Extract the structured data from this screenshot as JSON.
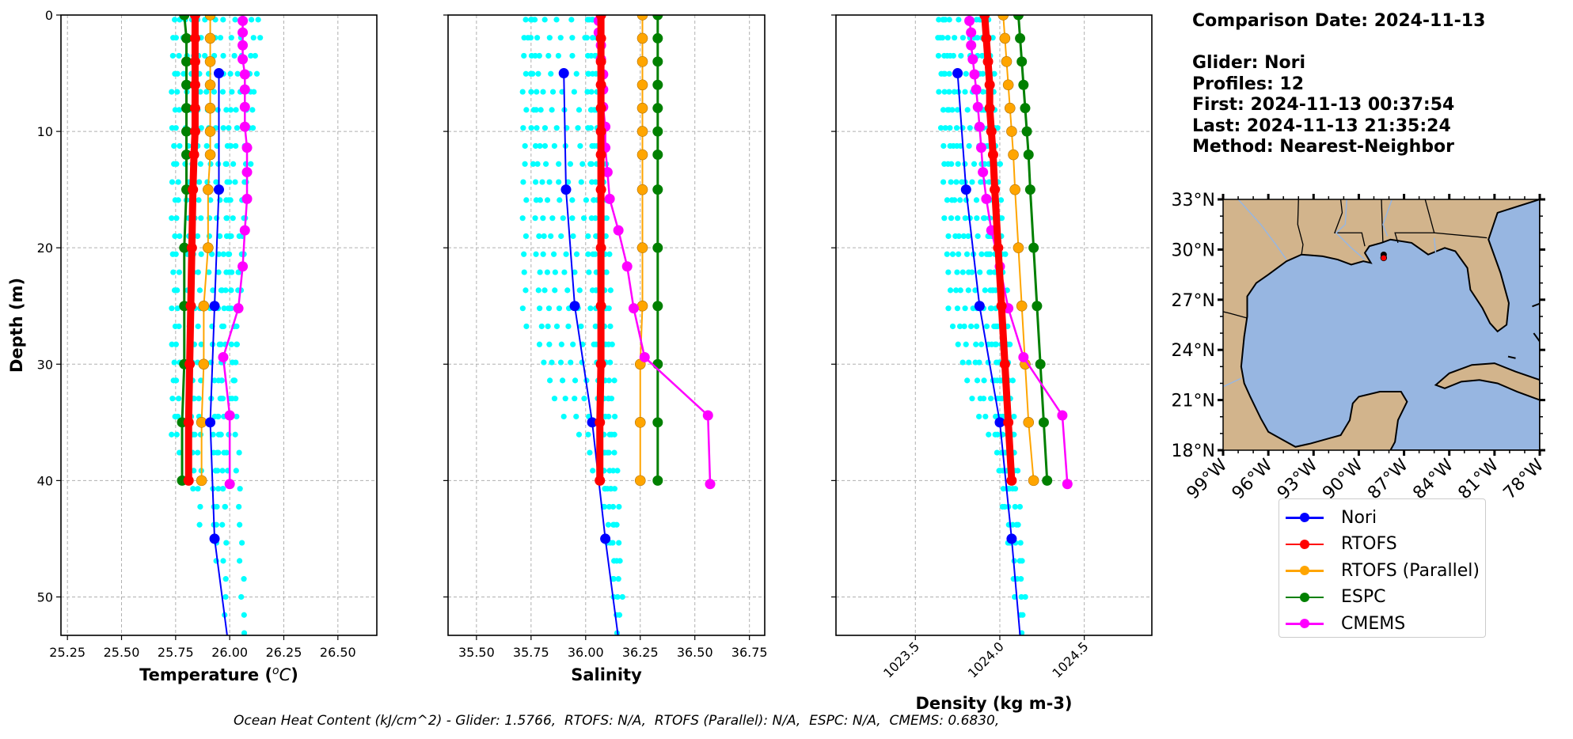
{
  "info": {
    "comparison_date": "Comparison Date: 2024-11-13",
    "glider": "Glider: Nori",
    "profiles": "Profiles: 12",
    "first": "First: 2024-11-13 00:37:54",
    "last": "Last: 2024-11-13 21:35:24",
    "method": "Method: Nearest-Neighbor"
  },
  "caption": "Ocean Heat Content (kJ/cm^2) - Glider: 1.5766,  RTOFS: N/A,  RTOFS (Parallel): N/A,  ESPC: N/A,  CMEMS: 0.6830,",
  "legend": [
    {
      "label": "Nori",
      "color": "#0000ff"
    },
    {
      "label": "RTOFS",
      "color": "#ff0000"
    },
    {
      "label": "RTOFS (Parallel)",
      "color": "#ffa500"
    },
    {
      "label": "ESPC",
      "color": "#008000"
    },
    {
      "label": "CMEMS",
      "color": "#ff00ff"
    }
  ],
  "colors": {
    "glider_profiles": "#00ffff",
    "grid": "#b0b0b0",
    "land": "#d2b48c",
    "ocean": "#97b6e1",
    "river": "#97b6e1"
  },
  "chart_data": [
    {
      "type": "line",
      "title": "",
      "xlabel": "Temperature (°C)",
      "ylabel": "Depth (m)",
      "xlim": [
        25.22,
        26.68
      ],
      "ylim": [
        53.3,
        0
      ],
      "xticks": [
        "25.25",
        "25.50",
        "25.75",
        "26.00",
        "26.25",
        "26.50"
      ],
      "yticks": [
        "0",
        "10",
        "20",
        "30",
        "40",
        "50"
      ],
      "grid": true,
      "profiles_scatter": {
        "name": "Glider profiles",
        "x_centers": [
          25.74,
          25.76,
          25.79,
          25.83,
          25.86,
          25.89,
          25.93,
          25.96,
          26.02,
          26.06,
          26.11,
          26.14
        ],
        "depth_max": [
          37,
          39,
          38,
          42,
          44,
          47,
          52,
          54,
          45,
          40,
          34,
          43
        ],
        "drift_per_m": [
          0.0,
          0.0,
          0.001,
          0.0,
          0.0,
          0.001,
          0.001,
          0.002,
          -0.002,
          -0.003,
          -0.003,
          -0.004
        ]
      },
      "series": [
        {
          "name": "Nori",
          "depth": [
            5,
            15,
            25,
            35,
            45,
            55
          ],
          "values": [
            25.95,
            25.95,
            25.93,
            25.91,
            25.93,
            26.0
          ]
        },
        {
          "name": "RTOFS",
          "depth": [
            0,
            2,
            4,
            6,
            8,
            10,
            12,
            15,
            20,
            25,
            30,
            35,
            40
          ],
          "values": [
            25.84,
            25.84,
            25.84,
            25.84,
            25.84,
            25.84,
            25.835,
            25.83,
            25.825,
            25.82,
            25.815,
            25.81,
            25.81
          ]
        },
        {
          "name": "RTOFS (Parallel)",
          "depth": [
            0,
            2,
            4,
            6,
            8,
            10,
            12,
            15,
            20,
            25,
            30,
            35,
            40
          ],
          "values": [
            25.91,
            25.91,
            25.91,
            25.91,
            25.91,
            25.91,
            25.91,
            25.9,
            25.9,
            25.88,
            25.88,
            25.87,
            25.87
          ]
        },
        {
          "name": "ESPC",
          "depth": [
            0,
            2,
            4,
            6,
            8,
            10,
            12,
            15,
            20,
            25,
            30,
            35,
            40
          ],
          "values": [
            25.79,
            25.8,
            25.8,
            25.8,
            25.8,
            25.8,
            25.8,
            25.8,
            25.79,
            25.79,
            25.79,
            25.78,
            25.78
          ]
        },
        {
          "name": "CMEMS",
          "depth": [
            0.5,
            1.5,
            2.6,
            3.8,
            5.1,
            6.4,
            7.9,
            9.6,
            11.4,
            13.5,
            15.8,
            18.5,
            21.6,
            25.2,
            29.4,
            34.4,
            40.3
          ],
          "values": [
            26.06,
            26.06,
            26.06,
            26.06,
            26.07,
            26.07,
            26.07,
            26.07,
            26.08,
            26.08,
            26.08,
            26.07,
            26.06,
            26.04,
            25.97,
            26.0,
            26.0
          ]
        }
      ]
    },
    {
      "type": "line",
      "title": "",
      "xlabel": "Salinity",
      "ylabel": "",
      "xlim": [
        35.37,
        36.82
      ],
      "ylim": [
        53.3,
        0
      ],
      "xticks": [
        "35.50",
        "35.75",
        "36.00",
        "36.25",
        "36.50",
        "36.75"
      ],
      "yticks": [],
      "grid": true,
      "profiles_scatter": {
        "name": "Glider profiles",
        "x_centers": [
          35.72,
          35.74,
          35.75,
          35.77,
          35.82,
          35.87,
          35.93,
          36.0,
          36.01,
          36.03,
          36.04,
          36.06
        ],
        "depth_max": [
          27,
          30,
          33,
          36,
          37,
          40,
          41,
          43,
          46,
          50,
          54,
          52
        ],
        "drift_per_m": [
          0.0,
          0.002,
          0.003,
          0.004,
          0.004,
          0.004,
          0.004,
          0.002,
          0.002,
          0.002,
          0.002,
          0.002
        ]
      },
      "series": [
        {
          "name": "Nori",
          "depth": [
            5,
            15,
            25,
            35,
            45,
            55
          ],
          "values": [
            35.9,
            35.91,
            35.95,
            36.03,
            36.09,
            36.16
          ]
        },
        {
          "name": "RTOFS",
          "depth": [
            0,
            2,
            4,
            6,
            8,
            10,
            12,
            15,
            20,
            25,
            30,
            35,
            40
          ],
          "values": [
            36.07,
            36.07,
            36.07,
            36.07,
            36.07,
            36.07,
            36.07,
            36.07,
            36.07,
            36.07,
            36.07,
            36.065,
            36.065
          ]
        },
        {
          "name": "RTOFS (Parallel)",
          "depth": [
            0,
            2,
            4,
            6,
            8,
            10,
            12,
            15,
            20,
            25,
            30,
            35,
            40
          ],
          "values": [
            36.26,
            36.26,
            36.26,
            36.26,
            36.26,
            36.26,
            36.26,
            36.26,
            36.26,
            36.26,
            36.25,
            36.25,
            36.25
          ]
        },
        {
          "name": "ESPC",
          "depth": [
            0,
            2,
            4,
            6,
            8,
            10,
            12,
            15,
            20,
            25,
            30,
            35,
            40
          ],
          "values": [
            36.33,
            36.33,
            36.33,
            36.33,
            36.33,
            36.33,
            36.33,
            36.33,
            36.33,
            36.33,
            36.33,
            36.33,
            36.33
          ]
        },
        {
          "name": "CMEMS",
          "depth": [
            0.5,
            1.5,
            2.6,
            3.8,
            5.1,
            6.4,
            7.9,
            9.6,
            11.4,
            13.5,
            15.8,
            18.5,
            21.6,
            25.2,
            29.4,
            34.4,
            40.3
          ],
          "values": [
            36.06,
            36.06,
            36.07,
            36.07,
            36.08,
            36.08,
            36.08,
            36.09,
            36.09,
            36.1,
            36.11,
            36.15,
            36.19,
            36.22,
            36.27,
            36.56,
            36.57
          ]
        }
      ]
    },
    {
      "type": "line",
      "title": "",
      "xlabel": "Density (kg m-3)",
      "ylabel": "",
      "xlim": [
        1023.03,
        1024.9
      ],
      "ylim": [
        53.3,
        0
      ],
      "xticks": [
        "1023.5",
        "1024.0",
        "1024.5"
      ],
      "yticks": [],
      "grid": true,
      "profiles_scatter": {
        "name": "Glider profiles",
        "x_centers": [
          1023.63,
          1023.65,
          1023.66,
          1023.68,
          1023.71,
          1023.76,
          1023.81,
          1023.85,
          1023.87,
          1023.89,
          1023.92,
          1023.94
        ],
        "depth_max": [
          27,
          30,
          33,
          36,
          37,
          40,
          41,
          43,
          46,
          50,
          54,
          52
        ],
        "drift_per_m": [
          0.003,
          0.004,
          0.005,
          0.006,
          0.006,
          0.006,
          0.006,
          0.004,
          0.004,
          0.004,
          0.004,
          0.004
        ]
      },
      "series": [
        {
          "name": "Nori",
          "depth": [
            5,
            15,
            25,
            35,
            45,
            55
          ],
          "values": [
            1023.75,
            1023.8,
            1023.88,
            1024.0,
            1024.07,
            1024.13
          ]
        },
        {
          "name": "RTOFS",
          "depth": [
            0,
            2,
            4,
            6,
            8,
            10,
            12,
            15,
            20,
            25,
            30,
            35,
            40
          ],
          "values": [
            1023.91,
            1023.92,
            1023.93,
            1023.94,
            1023.94,
            1023.95,
            1023.96,
            1023.97,
            1023.99,
            1024.01,
            1024.03,
            1024.05,
            1024.07
          ]
        },
        {
          "name": "RTOFS (Parallel)",
          "depth": [
            0,
            2,
            4,
            6,
            8,
            10,
            12,
            15,
            20,
            25,
            30,
            35,
            40
          ],
          "values": [
            1024.02,
            1024.03,
            1024.04,
            1024.05,
            1024.06,
            1024.07,
            1024.08,
            1024.09,
            1024.11,
            1024.13,
            1024.15,
            1024.17,
            1024.2
          ]
        },
        {
          "name": "ESPC",
          "depth": [
            0,
            2,
            4,
            6,
            8,
            10,
            12,
            15,
            20,
            25,
            30,
            35,
            40
          ],
          "values": [
            1024.11,
            1024.12,
            1024.13,
            1024.14,
            1024.15,
            1024.16,
            1024.17,
            1024.18,
            1024.2,
            1024.22,
            1024.24,
            1024.26,
            1024.28
          ]
        },
        {
          "name": "CMEMS",
          "depth": [
            0.5,
            1.5,
            2.6,
            3.8,
            5.1,
            6.4,
            7.9,
            9.6,
            11.4,
            13.5,
            15.8,
            18.5,
            21.6,
            25.2,
            29.4,
            34.4,
            40.3
          ],
          "values": [
            1023.82,
            1023.83,
            1023.83,
            1023.84,
            1023.85,
            1023.86,
            1023.87,
            1023.88,
            1023.89,
            1023.9,
            1023.92,
            1023.95,
            1024.0,
            1024.05,
            1024.14,
            1024.37,
            1024.4
          ]
        }
      ]
    },
    {
      "type": "map",
      "lat_ticks": [
        "33°N",
        "30°N",
        "27°N",
        "24°N",
        "21°N",
        "18°N"
      ],
      "lon_ticks": [
        "99°W",
        "96°W",
        "93°W",
        "90°W",
        "87°W",
        "84°W",
        "81°W",
        "78°W"
      ],
      "extent": {
        "lon": [
          -99,
          -78
        ],
        "lat": [
          18,
          33
        ]
      },
      "glider_location": {
        "lon": -88.35,
        "lat": 29.5
      }
    }
  ]
}
